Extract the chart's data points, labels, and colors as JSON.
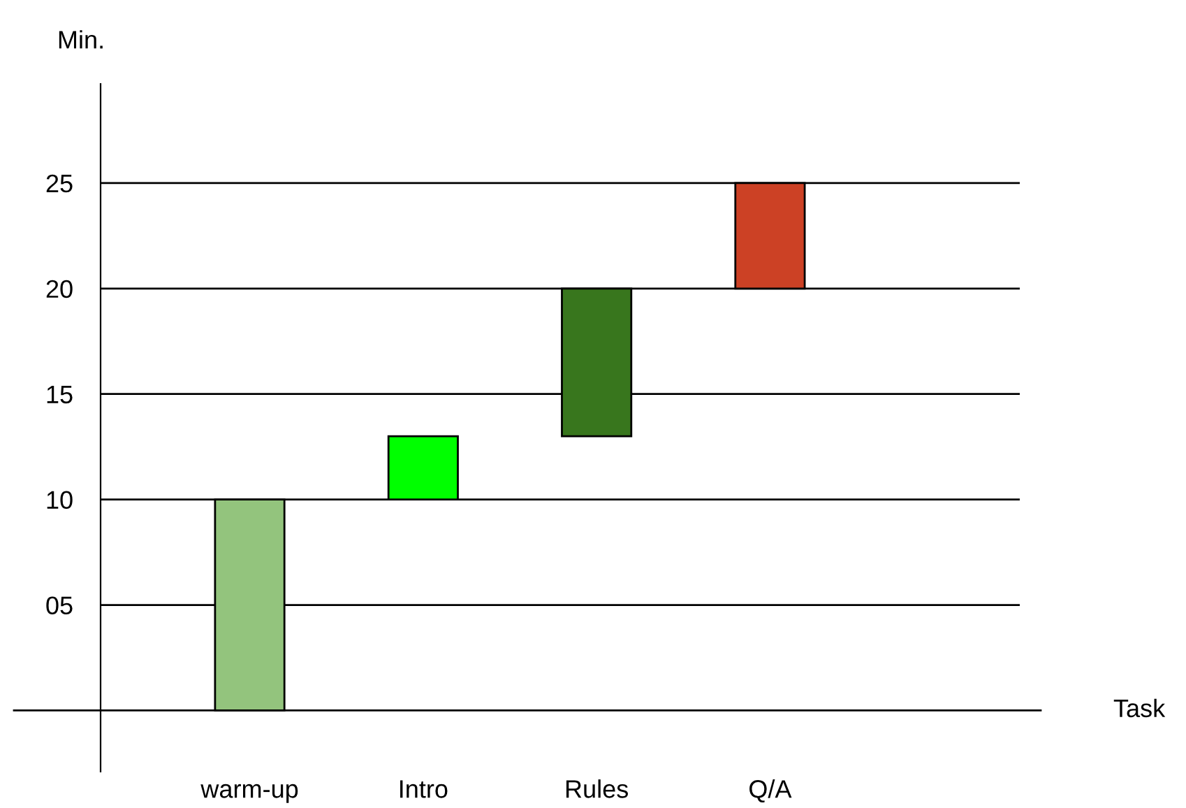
{
  "chart_data": {
    "type": "bar",
    "annotations": [
      "Task"
    ],
    "ylabel": "Min.",
    "categories": [
      "warm-up",
      "Intro",
      "Rules",
      "Q/A"
    ],
    "base": [
      0,
      10,
      13,
      20
    ],
    "values": [
      10,
      3,
      7,
      5
    ],
    "colors": [
      "#93c47d",
      "#00ff00",
      "#38761d",
      "#cc4125"
    ],
    "ylim": [
      -2.9,
      29.7
    ],
    "yticks": [
      {
        "value": 5,
        "label": "05"
      },
      10,
      15,
      20,
      25
    ],
    "grid": "y"
  }
}
